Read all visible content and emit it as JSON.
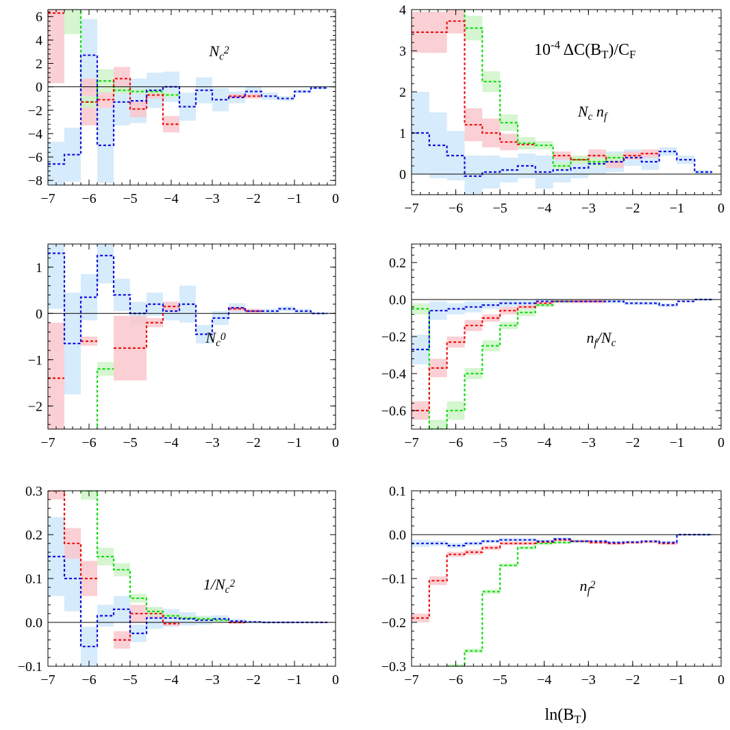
{
  "figure": {
    "title": "10^{-4} ΔC(B_T)/C_F",
    "xlabel": "ln(B_T)"
  },
  "colors": {
    "red_line": "#ee1111",
    "red_band": "#f9c8cc",
    "green_line": "#11dd11",
    "green_band": "#cef5c8",
    "blue_line": "#1111dd",
    "blue_band": "#cfe7fa"
  },
  "chart_data": [
    {
      "type": "line",
      "label": "N_c^2",
      "xlim": [
        -7,
        0
      ],
      "ylim": [
        -8.4,
        6.6
      ],
      "xticks": [
        -7,
        -6,
        -5,
        -4,
        -3,
        -2,
        -1,
        0
      ],
      "yticks": [
        -8,
        -6,
        -4,
        -2,
        0,
        2,
        4,
        6
      ],
      "tick_decimals": 0,
      "x_edges": [
        -7,
        -6.6,
        -6.2,
        -5.8,
        -5.4,
        -5.0,
        -4.6,
        -4.2,
        -3.8,
        -3.4,
        -3.0,
        -2.6,
        -2.2,
        -1.8,
        -1.4,
        -1.0,
        -0.6,
        -0.2
      ],
      "series": [
        {
          "color": "blue",
          "values": [
            -6.6,
            -5.8,
            2.7,
            -5.0,
            -1.3,
            -1.2,
            -0.3,
            0.0,
            -1.7,
            -0.3,
            -1.1,
            -0.9,
            -0.4,
            -0.8,
            -1.0,
            -0.4,
            -0.1
          ],
          "errors": [
            1.9,
            2.3,
            3.1,
            3.2,
            2.0,
            1.9,
            1.5,
            1.3,
            1.2,
            1.1,
            1.0,
            0.5,
            0.4,
            0.3,
            0.2,
            0.15,
            0.1
          ]
        },
        {
          "color": "red",
          "values": [
            6.3,
            null,
            -1.3,
            -1.1,
            0.7,
            -1.9,
            -0.7,
            -3.2,
            null,
            null,
            null,
            -0.8,
            -0.8
          ],
          "errors": [
            6.0,
            0,
            2.0,
            0.7,
            1.0,
            0.7,
            0.3,
            0.7,
            0,
            0,
            0,
            0.2,
            0.2
          ]
        },
        {
          "color": "green",
          "values": [
            null,
            7.5,
            -1.3,
            0.5,
            -0.3,
            -0.4,
            -0.4,
            -0.7
          ],
          "errors": [
            0,
            3.0,
            0.5,
            1.0,
            0.3,
            0.2,
            0.2,
            0.2
          ]
        }
      ]
    },
    {
      "type": "line",
      "label": "N_c n_f",
      "xlim": [
        -7,
        0
      ],
      "ylim": [
        -0.5,
        4
      ],
      "xticks": [
        -7,
        -6,
        -5,
        -4,
        -3,
        -2,
        -1,
        0
      ],
      "yticks": [
        0,
        1,
        2,
        3,
        4
      ],
      "tick_decimals": 0,
      "x_edges": [
        -7,
        -6.6,
        -6.2,
        -5.8,
        -5.4,
        -5.0,
        -4.6,
        -4.2,
        -3.8,
        -3.4,
        -3.0,
        -2.6,
        -2.2,
        -1.8,
        -1.4,
        -1.0,
        -0.6,
        -0.2
      ],
      "series": [
        {
          "color": "blue",
          "values": [
            1.0,
            0.7,
            0.45,
            -0.05,
            0.05,
            0.1,
            0.2,
            0.05,
            0.1,
            0.15,
            0.25,
            0.3,
            0.4,
            0.3,
            0.55,
            0.35,
            0.05
          ],
          "errors": [
            1.0,
            0.8,
            0.6,
            0.5,
            0.4,
            0.3,
            0.3,
            0.4,
            0.3,
            0.25,
            0.25,
            0.25,
            0.2,
            0.2,
            0.1,
            0.1,
            0.05
          ]
        },
        {
          "color": "red",
          "values": [
            3.45,
            3.45,
            3.72,
            1.2,
            1.0,
            0.78,
            0.72,
            null,
            0.45,
            0.35,
            0.45,
            0.3,
            0.45,
            0.5
          ],
          "errors": [
            0.5,
            0.5,
            0.3,
            0.4,
            0.35,
            0.2,
            0.1,
            0,
            0.1,
            0.1,
            0.15,
            0.15,
            0.1,
            0.1
          ]
        },
        {
          "color": "green",
          "values": [
            null,
            null,
            4.5,
            3.55,
            2.25,
            1.25,
            0.75,
            0.7,
            0.2,
            0.35,
            0.3,
            0.4
          ],
          "errors": [
            0,
            0,
            0.3,
            0.3,
            0.25,
            0.2,
            0.15,
            0.1,
            0.1,
            0.1,
            0.1,
            0.1
          ]
        }
      ]
    },
    {
      "type": "line",
      "label": "N_c^0",
      "xlim": [
        -7,
        0
      ],
      "ylim": [
        -2.5,
        1.5
      ],
      "xticks": [
        -7,
        -6,
        -5,
        -4,
        -3,
        -2,
        -1,
        0
      ],
      "yticks": [
        -2,
        -1,
        0,
        1
      ],
      "tick_decimals": 0,
      "x_edges": [
        -7,
        -6.6,
        -6.2,
        -5.8,
        -5.4,
        -5.0,
        -4.6,
        -4.2,
        -3.8,
        -3.4,
        -3.0,
        -2.6,
        -2.2,
        -1.8,
        -1.4,
        -1.0,
        -0.6,
        -0.2
      ],
      "series": [
        {
          "color": "blue",
          "values": [
            1.3,
            -0.65,
            0.35,
            1.25,
            0.4,
            0.0,
            0.2,
            0.05,
            0.2,
            -0.45,
            -0.1,
            0.12,
            0.05,
            0.05,
            0.1,
            0.05,
            0.0
          ],
          "errors": [
            1.2,
            1.1,
            0.5,
            0.6,
            0.35,
            0.25,
            0.25,
            0.2,
            0.4,
            0.2,
            0.15,
            0.1,
            0.05,
            0.05,
            0.05,
            0.05,
            0.02
          ]
        },
        {
          "color": "red",
          "values": [
            -1.4,
            null,
            -0.6,
            null,
            -0.75,
            -0.75,
            -0.2,
            0.15,
            null,
            null,
            null,
            0.1,
            0.05
          ],
          "errors": [
            1.2,
            0,
            0.1,
            0,
            0.7,
            0.7,
            0.1,
            0.1,
            0,
            0,
            0,
            0.05,
            0.05
          ]
        },
        {
          "color": "green",
          "values": [
            null,
            null,
            -2.6,
            -1.2
          ],
          "errors": [
            0,
            0,
            0.1,
            0.15
          ]
        }
      ]
    },
    {
      "type": "line",
      "label": "n_f/N_c",
      "xlim": [
        -7,
        0
      ],
      "ylim": [
        -0.7,
        0.3
      ],
      "xticks": [
        -7,
        -6,
        -5,
        -4,
        -3,
        -2,
        -1,
        0
      ],
      "yticks": [
        -0.6,
        -0.4,
        -0.2,
        0.0,
        0.2
      ],
      "tick_decimals": 1,
      "x_edges": [
        -7,
        -6.6,
        -6.2,
        -5.8,
        -5.4,
        -5.0,
        -4.6,
        -4.2,
        -3.8,
        -3.4,
        -3.0,
        -2.6,
        -2.2,
        -1.8,
        -1.4,
        -1.0,
        -0.6,
        -0.2
      ],
      "series": [
        {
          "color": "blue",
          "values": [
            -0.27,
            -0.06,
            -0.05,
            -0.04,
            -0.03,
            -0.02,
            -0.02,
            -0.01,
            -0.01,
            -0.01,
            -0.01,
            -0.01,
            -0.02,
            -0.02,
            -0.03,
            -0.01,
            0.0
          ],
          "errors": [
            0.08,
            0.05,
            0.03,
            0.03,
            0.02,
            0.02,
            0.015,
            0.015,
            0.01,
            0.01,
            0.01,
            0.01,
            0.01,
            0.01,
            0.01,
            0.005,
            0.005
          ]
        },
        {
          "color": "red",
          "values": [
            -0.6,
            -0.37,
            -0.23,
            -0.14,
            -0.1,
            -0.06,
            -0.04,
            -0.02,
            -0.01,
            -0.01,
            -0.01
          ],
          "errors": [
            0.05,
            0.05,
            0.03,
            0.03,
            0.02,
            0.02,
            0.01,
            0.01,
            0.01,
            0.01,
            0.01
          ]
        },
        {
          "color": "green",
          "values": [
            -0.05,
            -0.7,
            -0.6,
            -0.4,
            -0.25,
            -0.14,
            -0.07,
            -0.03,
            -0.01
          ],
          "errors": [
            0.03,
            0.05,
            0.05,
            0.03,
            0.03,
            0.02,
            0.02,
            0.01,
            0.01
          ]
        }
      ]
    },
    {
      "type": "line",
      "label": "1/N_c^2",
      "xlim": [
        -7,
        0
      ],
      "ylim": [
        -0.1,
        0.3
      ],
      "xticks": [
        -7,
        -6,
        -5,
        -4,
        -3,
        -2,
        -1,
        0
      ],
      "yticks": [
        -0.1,
        0.0,
        0.1,
        0.2,
        0.3
      ],
      "tick_decimals": 1,
      "x_edges": [
        -7,
        -6.6,
        -6.2,
        -5.8,
        -5.4,
        -5.0,
        -4.6,
        -4.2,
        -3.8,
        -3.4,
        -3.0,
        -2.6,
        -2.2,
        -1.8,
        -1.4,
        -1.0,
        -0.6,
        -0.2
      ],
      "series": [
        {
          "color": "blue",
          "values": [
            0.15,
            0.1,
            -0.055,
            0.015,
            0.03,
            -0.025,
            0.01,
            0.01,
            0.008,
            0.005,
            0.008,
            0.003,
            0.001,
            0.0,
            0.0,
            0.0,
            0.0
          ],
          "errors": [
            0.09,
            0.075,
            0.045,
            0.025,
            0.03,
            0.02,
            0.025,
            0.02,
            0.015,
            0.01,
            0.008,
            0.005,
            0.003,
            0.002,
            0.002,
            0.001,
            0.001
          ]
        },
        {
          "color": "red",
          "values": [
            0.3,
            0.18,
            0.1,
            null,
            -0.04,
            0.02,
            0.02,
            -0.003,
            null,
            null,
            null,
            0.0
          ],
          "errors": [
            0.02,
            0.035,
            0.04,
            0,
            0.02,
            0.02,
            0.01,
            0.005,
            0,
            0,
            0,
            0.003
          ]
        },
        {
          "color": "green",
          "values": [
            null,
            null,
            0.3,
            0.15,
            0.12,
            0.055,
            0.025,
            0.015,
            0.01,
            0.008,
            0.005
          ],
          "errors": [
            0,
            0,
            0.02,
            0.02,
            0.015,
            0.01,
            0.01,
            0.005,
            0.005,
            0.005,
            0.003
          ]
        }
      ]
    },
    {
      "type": "line",
      "label": "n_f^2",
      "xlim": [
        -7,
        0
      ],
      "ylim": [
        -0.3,
        0.1
      ],
      "xticks": [
        -7,
        -6,
        -5,
        -4,
        -3,
        -2,
        -1,
        0
      ],
      "yticks": [
        -0.3,
        -0.2,
        -0.1,
        0.0,
        0.1
      ],
      "tick_decimals": 1,
      "x_edges": [
        -7,
        -6.6,
        -6.2,
        -5.8,
        -5.4,
        -5.0,
        -4.6,
        -4.2,
        -3.8,
        -3.4,
        -3.0,
        -2.6,
        -2.2,
        -1.8,
        -1.4,
        -1.0,
        -0.6,
        -0.2
      ],
      "series": [
        {
          "color": "blue",
          "values": [
            -0.02,
            -0.02,
            -0.025,
            -0.02,
            -0.015,
            -0.012,
            -0.012,
            -0.015,
            -0.01,
            -0.015,
            -0.015,
            -0.018,
            -0.017,
            -0.015,
            -0.018,
            0.0,
            0.0
          ],
          "errors": [
            0.008,
            0.006,
            0.006,
            0.005,
            0.004,
            0.004,
            0.004,
            0.004,
            0.004,
            0.004,
            0.003,
            0.003,
            0.003,
            0.003,
            0.003,
            0.002,
            0.002
          ]
        },
        {
          "color": "red",
          "values": [
            -0.19,
            -0.105,
            -0.045,
            -0.04,
            -0.03,
            -0.02,
            -0.02,
            -0.017,
            -0.012,
            -0.015,
            -0.018,
            -0.02,
            -0.018,
            -0.016,
            -0.02
          ],
          "errors": [
            0.01,
            0.01,
            0.006,
            0.006,
            0.005,
            0.004,
            0.004,
            0.004,
            0.003,
            0.003,
            0.003,
            0.003,
            0.003,
            0.003,
            0.003
          ]
        },
        {
          "color": "green",
          "values": [
            null,
            null,
            -0.3,
            -0.265,
            -0.13,
            -0.07,
            -0.03,
            -0.02,
            -0.018,
            -0.015
          ],
          "errors": [
            0,
            0,
            0.005,
            0.005,
            0.005,
            0.004,
            0.004,
            0.003,
            0.003,
            0.003
          ]
        }
      ]
    }
  ]
}
